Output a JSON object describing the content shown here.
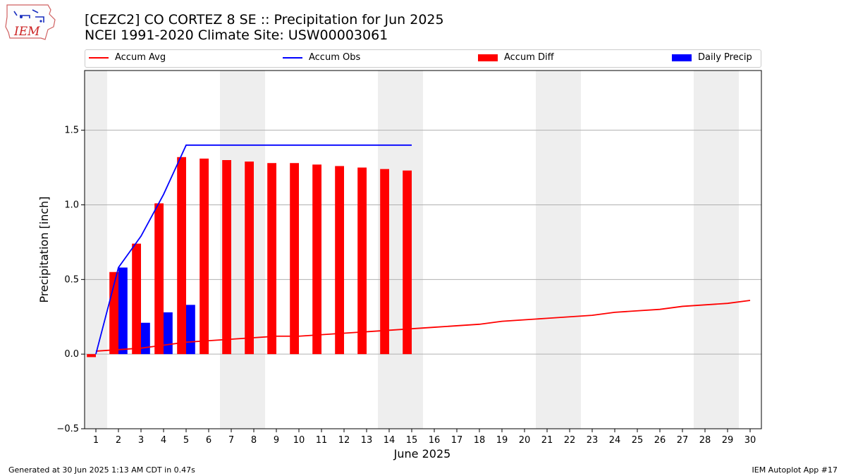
{
  "logo": {
    "text": "IEM",
    "icon": "iem-iowa-state-map-logo"
  },
  "header": {
    "title_line1": "[CEZC2] CO CORTEZ 8 SE :: Precipitation for Jun 2025",
    "title_line2": "NCEI 1991-2020 Climate Site: USW00003061"
  },
  "legend": {
    "items": [
      {
        "label": "Accum Avg",
        "kind": "line",
        "color": "#ff0000"
      },
      {
        "label": "Accum Obs",
        "kind": "line",
        "color": "#0000ff"
      },
      {
        "label": "Accum Diff",
        "kind": "patch",
        "color": "#ff0000"
      },
      {
        "label": "Daily Precip",
        "kind": "patch",
        "color": "#0000ff"
      }
    ]
  },
  "footer": {
    "left": "Generated at 30 Jun 2025 1:13 AM CDT in 0.47s",
    "right": "IEM Autoplot App #17"
  },
  "chart_data": {
    "type": "bar",
    "xlabel": "June 2025",
    "ylabel": "Precipitation [inch]",
    "ylim": [
      -0.5,
      1.9
    ],
    "yticks": [
      -0.5,
      0.0,
      0.5,
      1.0,
      1.5
    ],
    "ytick_labels": [
      "−0.5",
      "0.0",
      "0.5",
      "1.0",
      "1.5"
    ],
    "x": [
      1,
      2,
      3,
      4,
      5,
      6,
      7,
      8,
      9,
      10,
      11,
      12,
      13,
      14,
      15,
      16,
      17,
      18,
      19,
      20,
      21,
      22,
      23,
      24,
      25,
      26,
      27,
      28,
      29,
      30
    ],
    "grid": "horizontal",
    "shaded_weekends": [
      1,
      7,
      8,
      14,
      15,
      21,
      22,
      28,
      29
    ],
    "series": [
      {
        "name": "Accum Avg",
        "kind": "line",
        "color": "#ff0000",
        "x": [
          1,
          2,
          3,
          4,
          5,
          6,
          7,
          8,
          9,
          10,
          11,
          12,
          13,
          14,
          15,
          16,
          17,
          18,
          19,
          20,
          21,
          22,
          23,
          24,
          25,
          26,
          27,
          28,
          29,
          30
        ],
        "values": [
          0.02,
          0.03,
          0.04,
          0.06,
          0.08,
          0.09,
          0.1,
          0.11,
          0.12,
          0.12,
          0.13,
          0.14,
          0.15,
          0.16,
          0.17,
          0.18,
          0.19,
          0.2,
          0.22,
          0.23,
          0.24,
          0.25,
          0.26,
          0.28,
          0.29,
          0.3,
          0.32,
          0.33,
          0.34,
          0.36
        ]
      },
      {
        "name": "Accum Obs",
        "kind": "line",
        "color": "#0000ff",
        "x": [
          1,
          2,
          3,
          4,
          5,
          6,
          7,
          8,
          9,
          10,
          11,
          12,
          13,
          14,
          15
        ],
        "values": [
          0.0,
          0.58,
          0.79,
          1.07,
          1.4,
          1.4,
          1.4,
          1.4,
          1.4,
          1.4,
          1.4,
          1.4,
          1.4,
          1.4,
          1.4
        ]
      },
      {
        "name": "Accum Diff",
        "kind": "bar",
        "color": "#ff0000",
        "x": [
          1,
          2,
          3,
          4,
          5,
          6,
          7,
          8,
          9,
          10,
          11,
          12,
          13,
          14,
          15
        ],
        "values": [
          -0.02,
          0.55,
          0.74,
          1.01,
          1.32,
          1.31,
          1.3,
          1.29,
          1.28,
          1.28,
          1.27,
          1.26,
          1.25,
          1.24,
          1.23
        ]
      },
      {
        "name": "Daily Precip",
        "kind": "bar",
        "color": "#0000ff",
        "x": [
          2,
          3,
          4,
          5
        ],
        "values": [
          0.58,
          0.21,
          0.28,
          0.33
        ]
      }
    ]
  }
}
